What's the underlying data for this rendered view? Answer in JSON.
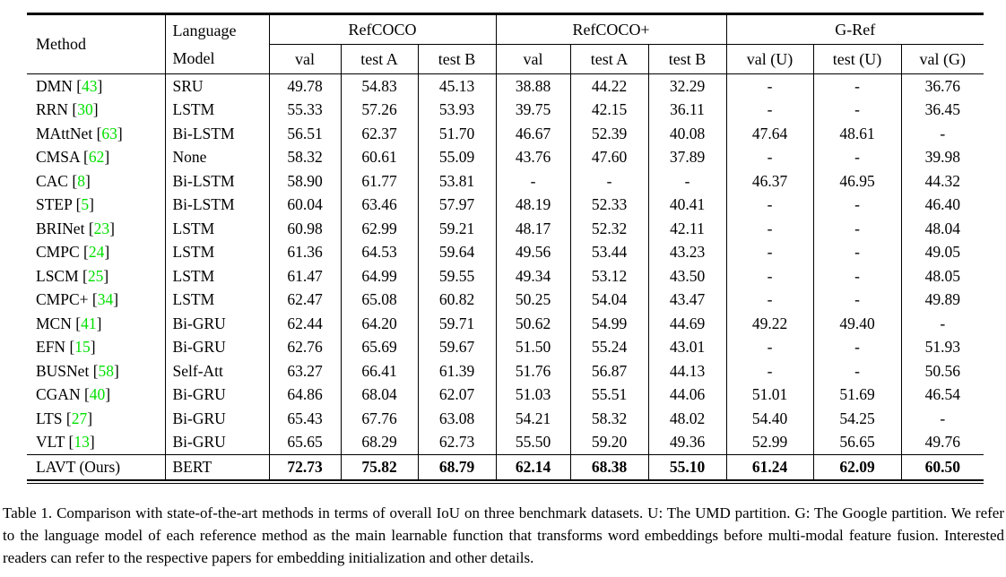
{
  "colors": {
    "cite_green": "#00e000",
    "text": "#000000",
    "background": "#ffffff",
    "rule": "#000000"
  },
  "table": {
    "header": {
      "method": "Method",
      "language_model_line1": "Language",
      "language_model_line2": "Model",
      "groups": [
        {
          "label": "RefCOCO",
          "cols": [
            "val",
            "test A",
            "test B"
          ]
        },
        {
          "label": "RefCOCO+",
          "cols": [
            "val",
            "test A",
            "test B"
          ]
        },
        {
          "label": "G-Ref",
          "cols": [
            "val (U)",
            "test (U)",
            "val (G)"
          ]
        }
      ]
    },
    "rows": [
      {
        "method": "DMN",
        "cite": "43",
        "lm": "SRU",
        "values": [
          "49.78",
          "54.83",
          "45.13",
          "38.88",
          "44.22",
          "32.29",
          "-",
          "-",
          "36.76"
        ],
        "bold": false
      },
      {
        "method": "RRN",
        "cite": "30",
        "lm": "LSTM",
        "values": [
          "55.33",
          "57.26",
          "53.93",
          "39.75",
          "42.15",
          "36.11",
          "-",
          "-",
          "36.45"
        ],
        "bold": false
      },
      {
        "method": "MAttNet",
        "cite": "63",
        "lm": "Bi-LSTM",
        "values": [
          "56.51",
          "62.37",
          "51.70",
          "46.67",
          "52.39",
          "40.08",
          "47.64",
          "48.61",
          "-"
        ],
        "bold": false
      },
      {
        "method": "CMSA",
        "cite": "62",
        "lm": "None",
        "values": [
          "58.32",
          "60.61",
          "55.09",
          "43.76",
          "47.60",
          "37.89",
          "-",
          "-",
          "39.98"
        ],
        "bold": false
      },
      {
        "method": "CAC",
        "cite": "8",
        "lm": "Bi-LSTM",
        "values": [
          "58.90",
          "61.77",
          "53.81",
          "-",
          "-",
          "-",
          "46.37",
          "46.95",
          "44.32"
        ],
        "bold": false
      },
      {
        "method": "STEP",
        "cite": "5",
        "lm": "Bi-LSTM",
        "values": [
          "60.04",
          "63.46",
          "57.97",
          "48.19",
          "52.33",
          "40.41",
          "-",
          "-",
          "46.40"
        ],
        "bold": false
      },
      {
        "method": "BRINet",
        "cite": "23",
        "lm": "LSTM",
        "values": [
          "60.98",
          "62.99",
          "59.21",
          "48.17",
          "52.32",
          "42.11",
          "-",
          "-",
          "48.04"
        ],
        "bold": false
      },
      {
        "method": "CMPC",
        "cite": "24",
        "lm": "LSTM",
        "values": [
          "61.36",
          "64.53",
          "59.64",
          "49.56",
          "53.44",
          "43.23",
          "-",
          "-",
          "49.05"
        ],
        "bold": false
      },
      {
        "method": "LSCM",
        "cite": "25",
        "lm": "LSTM",
        "values": [
          "61.47",
          "64.99",
          "59.55",
          "49.34",
          "53.12",
          "43.50",
          "-",
          "-",
          "48.05"
        ],
        "bold": false
      },
      {
        "method": "CMPC+",
        "cite": "34",
        "lm": "LSTM",
        "values": [
          "62.47",
          "65.08",
          "60.82",
          "50.25",
          "54.04",
          "43.47",
          "-",
          "-",
          "49.89"
        ],
        "bold": false
      },
      {
        "method": "MCN",
        "cite": "41",
        "lm": "Bi-GRU",
        "values": [
          "62.44",
          "64.20",
          "59.71",
          "50.62",
          "54.99",
          "44.69",
          "49.22",
          "49.40",
          "-"
        ],
        "bold": false
      },
      {
        "method": "EFN",
        "cite": "15",
        "lm": "Bi-GRU",
        "values": [
          "62.76",
          "65.69",
          "59.67",
          "51.50",
          "55.24",
          "43.01",
          "-",
          "-",
          "51.93"
        ],
        "bold": false
      },
      {
        "method": "BUSNet",
        "cite": "58",
        "lm": "Self-Att",
        "values": [
          "63.27",
          "66.41",
          "61.39",
          "51.76",
          "56.87",
          "44.13",
          "-",
          "-",
          "50.56"
        ],
        "bold": false
      },
      {
        "method": "CGAN",
        "cite": "40",
        "lm": "Bi-GRU",
        "values": [
          "64.86",
          "68.04",
          "62.07",
          "51.03",
          "55.51",
          "44.06",
          "51.01",
          "51.69",
          "46.54"
        ],
        "bold": false
      },
      {
        "method": "LTS",
        "cite": "27",
        "lm": "Bi-GRU",
        "values": [
          "65.43",
          "67.76",
          "63.08",
          "54.21",
          "58.32",
          "48.02",
          "54.40",
          "54.25",
          "-"
        ],
        "bold": false
      },
      {
        "method": "VLT",
        "cite": "13",
        "lm": "Bi-GRU",
        "values": [
          "65.65",
          "68.29",
          "62.73",
          "55.50",
          "59.20",
          "49.36",
          "52.99",
          "56.65",
          "49.76"
        ],
        "bold": false
      },
      {
        "method": "LAVT (Ours)",
        "cite": null,
        "lm": "BERT",
        "values": [
          "72.73",
          "75.82",
          "68.79",
          "62.14",
          "68.38",
          "55.10",
          "61.24",
          "62.09",
          "60.50"
        ],
        "bold": true
      }
    ]
  },
  "caption": "Table 1.  Comparison with state-of-the-art methods in terms of overall IoU on three benchmark datasets.  U: The UMD partition.  G: The Google partition.  We refer to the language model of each reference method as the main learnable function that transforms word embeddings before multi-modal feature fusion.  Interested readers can refer to the respective papers for embedding initialization and other details."
}
